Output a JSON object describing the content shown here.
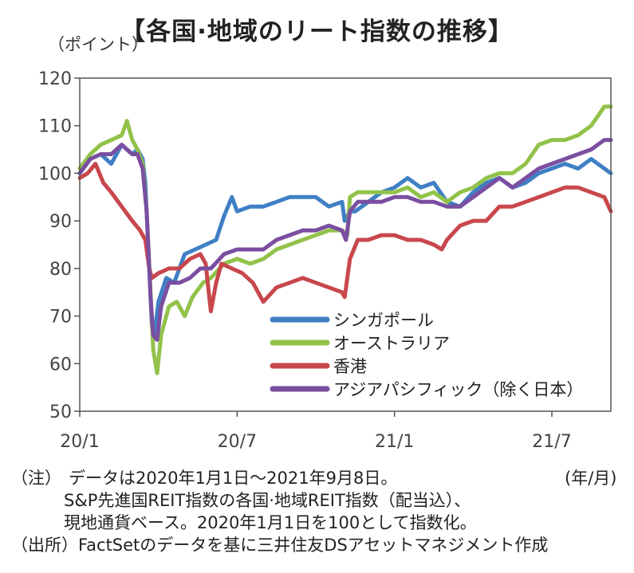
{
  "title": "【各国·地域のリート指数の推移】",
  "y_unit": "（ポイント）",
  "x_unit": "(年/月)",
  "notes": {
    "label": "（注）",
    "line1": "データは2020年1月1日～2021年9月8日。",
    "line2": "S&P先進国REIT指数の各国·地域REIT指数（配当込）、",
    "line3": "現地通貨ベース。2020年1月1日を100として指数化。"
  },
  "source": {
    "label": "（出所）",
    "text": "FactSetのデータを基に三井住友DSアセットマネジメント作成"
  },
  "chart_data": {
    "type": "line",
    "ylim": [
      50,
      120
    ],
    "yticks": [
      50,
      60,
      70,
      80,
      90,
      100,
      110,
      120
    ],
    "xlim": [
      0,
      20.25
    ],
    "xticks": [
      {
        "pos": 0,
        "label": "20/1"
      },
      {
        "pos": 6,
        "label": "20/7"
      },
      {
        "pos": 12,
        "label": "21/1"
      },
      {
        "pos": 18,
        "label": "21/7"
      }
    ],
    "legend_position": "bottom-right",
    "series": [
      {
        "name": "シンガポール",
        "color": "#3f7fc4",
        "points": [
          [
            0,
            100
          ],
          [
            0.4,
            103
          ],
          [
            0.8,
            104
          ],
          [
            1.2,
            102
          ],
          [
            1.6,
            106
          ],
          [
            2.0,
            104
          ],
          [
            2.2,
            105
          ],
          [
            2.4,
            103
          ],
          [
            2.5,
            98
          ],
          [
            2.65,
            80
          ],
          [
            2.75,
            68
          ],
          [
            2.85,
            66
          ],
          [
            3.0,
            73
          ],
          [
            3.3,
            78
          ],
          [
            3.6,
            77
          ],
          [
            4.0,
            83
          ],
          [
            4.4,
            84
          ],
          [
            4.8,
            85
          ],
          [
            5.2,
            86
          ],
          [
            5.5,
            91
          ],
          [
            5.8,
            95
          ],
          [
            6.0,
            92
          ],
          [
            6.5,
            93
          ],
          [
            7.0,
            93
          ],
          [
            7.5,
            94
          ],
          [
            8.0,
            95
          ],
          [
            8.5,
            95
          ],
          [
            9.0,
            95
          ],
          [
            9.5,
            93
          ],
          [
            10.0,
            94
          ],
          [
            10.1,
            90
          ],
          [
            10.3,
            92
          ],
          [
            10.5,
            92
          ],
          [
            11.0,
            94
          ],
          [
            11.5,
            96
          ],
          [
            12.0,
            97
          ],
          [
            12.5,
            99
          ],
          [
            13.0,
            97
          ],
          [
            13.5,
            98
          ],
          [
            14.0,
            94
          ],
          [
            14.5,
            93
          ],
          [
            15.0,
            96
          ],
          [
            15.5,
            98
          ],
          [
            16.0,
            99
          ],
          [
            16.5,
            97
          ],
          [
            17.0,
            98
          ],
          [
            17.5,
            100
          ],
          [
            18.0,
            101
          ],
          [
            18.5,
            102
          ],
          [
            19.0,
            101
          ],
          [
            19.5,
            103
          ],
          [
            20.0,
            101
          ],
          [
            20.25,
            100
          ]
        ]
      },
      {
        "name": "オーストラリア",
        "color": "#92c24a",
        "points": [
          [
            0,
            101
          ],
          [
            0.4,
            104
          ],
          [
            0.8,
            106
          ],
          [
            1.2,
            107
          ],
          [
            1.6,
            108
          ],
          [
            1.8,
            111
          ],
          [
            2.0,
            107
          ],
          [
            2.2,
            105
          ],
          [
            2.4,
            102
          ],
          [
            2.55,
            92
          ],
          [
            2.7,
            75
          ],
          [
            2.8,
            63
          ],
          [
            2.95,
            58
          ],
          [
            3.1,
            66
          ],
          [
            3.4,
            72
          ],
          [
            3.7,
            73
          ],
          [
            4.0,
            70
          ],
          [
            4.3,
            74
          ],
          [
            4.7,
            77
          ],
          [
            5.0,
            78
          ],
          [
            5.5,
            81
          ],
          [
            6.0,
            82
          ],
          [
            6.5,
            81
          ],
          [
            7.0,
            82
          ],
          [
            7.5,
            84
          ],
          [
            8.0,
            85
          ],
          [
            8.5,
            86
          ],
          [
            9.0,
            87
          ],
          [
            9.5,
            88
          ],
          [
            10.0,
            88
          ],
          [
            10.2,
            87
          ],
          [
            10.3,
            95
          ],
          [
            10.6,
            96
          ],
          [
            11.0,
            96
          ],
          [
            11.5,
            96
          ],
          [
            12.0,
            96
          ],
          [
            12.5,
            97
          ],
          [
            13.0,
            95
          ],
          [
            13.5,
            96
          ],
          [
            14.0,
            94
          ],
          [
            14.5,
            96
          ],
          [
            15.0,
            97
          ],
          [
            15.5,
            99
          ],
          [
            16.0,
            100
          ],
          [
            16.5,
            100
          ],
          [
            17.0,
            102
          ],
          [
            17.5,
            106
          ],
          [
            18.0,
            107
          ],
          [
            18.5,
            107
          ],
          [
            19.0,
            108
          ],
          [
            19.5,
            110
          ],
          [
            20.0,
            114
          ],
          [
            20.25,
            114
          ]
        ]
      },
      {
        "name": "香港",
        "color": "#c8474d",
        "points": [
          [
            0,
            99
          ],
          [
            0.3,
            100
          ],
          [
            0.6,
            102
          ],
          [
            0.9,
            98
          ],
          [
            1.2,
            96
          ],
          [
            1.6,
            93
          ],
          [
            2.0,
            90
          ],
          [
            2.3,
            88
          ],
          [
            2.5,
            86
          ],
          [
            2.65,
            80
          ],
          [
            2.75,
            78
          ],
          [
            3.0,
            79
          ],
          [
            3.4,
            80
          ],
          [
            3.8,
            80
          ],
          [
            4.2,
            82
          ],
          [
            4.6,
            83
          ],
          [
            4.8,
            81
          ],
          [
            5.0,
            71
          ],
          [
            5.2,
            77
          ],
          [
            5.4,
            81
          ],
          [
            5.8,
            80
          ],
          [
            6.2,
            79
          ],
          [
            6.6,
            77
          ],
          [
            7.0,
            73
          ],
          [
            7.5,
            76
          ],
          [
            8.0,
            77
          ],
          [
            8.5,
            78
          ],
          [
            9.0,
            77
          ],
          [
            9.5,
            76
          ],
          [
            10.0,
            75
          ],
          [
            10.1,
            74
          ],
          [
            10.3,
            82
          ],
          [
            10.6,
            86
          ],
          [
            11.0,
            86
          ],
          [
            11.5,
            87
          ],
          [
            12.0,
            87
          ],
          [
            12.5,
            86
          ],
          [
            13.0,
            86
          ],
          [
            13.5,
            85
          ],
          [
            13.8,
            84
          ],
          [
            14.0,
            86
          ],
          [
            14.5,
            89
          ],
          [
            15.0,
            90
          ],
          [
            15.5,
            90
          ],
          [
            16.0,
            93
          ],
          [
            16.5,
            93
          ],
          [
            17.0,
            94
          ],
          [
            17.5,
            95
          ],
          [
            18.0,
            96
          ],
          [
            18.5,
            97
          ],
          [
            19.0,
            97
          ],
          [
            19.5,
            96
          ],
          [
            20.0,
            95
          ],
          [
            20.25,
            92
          ]
        ]
      },
      {
        "name": "アジアパシフィック（除く日本）",
        "color": "#7a4ea0",
        "points": [
          [
            0,
            100
          ],
          [
            0.4,
            103
          ],
          [
            0.8,
            104
          ],
          [
            1.2,
            104
          ],
          [
            1.6,
            106
          ],
          [
            2.0,
            104
          ],
          [
            2.2,
            104
          ],
          [
            2.4,
            101
          ],
          [
            2.55,
            92
          ],
          [
            2.7,
            74
          ],
          [
            2.8,
            66
          ],
          [
            2.95,
            65
          ],
          [
            3.1,
            72
          ],
          [
            3.4,
            77
          ],
          [
            3.8,
            77
          ],
          [
            4.2,
            78
          ],
          [
            4.6,
            80
          ],
          [
            5.0,
            80
          ],
          [
            5.5,
            83
          ],
          [
            6.0,
            84
          ],
          [
            6.5,
            84
          ],
          [
            7.0,
            84
          ],
          [
            7.5,
            86
          ],
          [
            8.0,
            87
          ],
          [
            8.5,
            88
          ],
          [
            9.0,
            88
          ],
          [
            9.5,
            89
          ],
          [
            10.0,
            88
          ],
          [
            10.15,
            86
          ],
          [
            10.3,
            92
          ],
          [
            10.6,
            94
          ],
          [
            11.0,
            94
          ],
          [
            11.5,
            94
          ],
          [
            12.0,
            95
          ],
          [
            12.5,
            95
          ],
          [
            13.0,
            94
          ],
          [
            13.5,
            94
          ],
          [
            14.0,
            93
          ],
          [
            14.5,
            93
          ],
          [
            15.0,
            95
          ],
          [
            15.5,
            97
          ],
          [
            16.0,
            99
          ],
          [
            16.5,
            97
          ],
          [
            17.0,
            99
          ],
          [
            17.5,
            101
          ],
          [
            18.0,
            102
          ],
          [
            18.5,
            103
          ],
          [
            19.0,
            104
          ],
          [
            19.5,
            105
          ],
          [
            20.0,
            107
          ],
          [
            20.25,
            107
          ]
        ]
      }
    ]
  }
}
